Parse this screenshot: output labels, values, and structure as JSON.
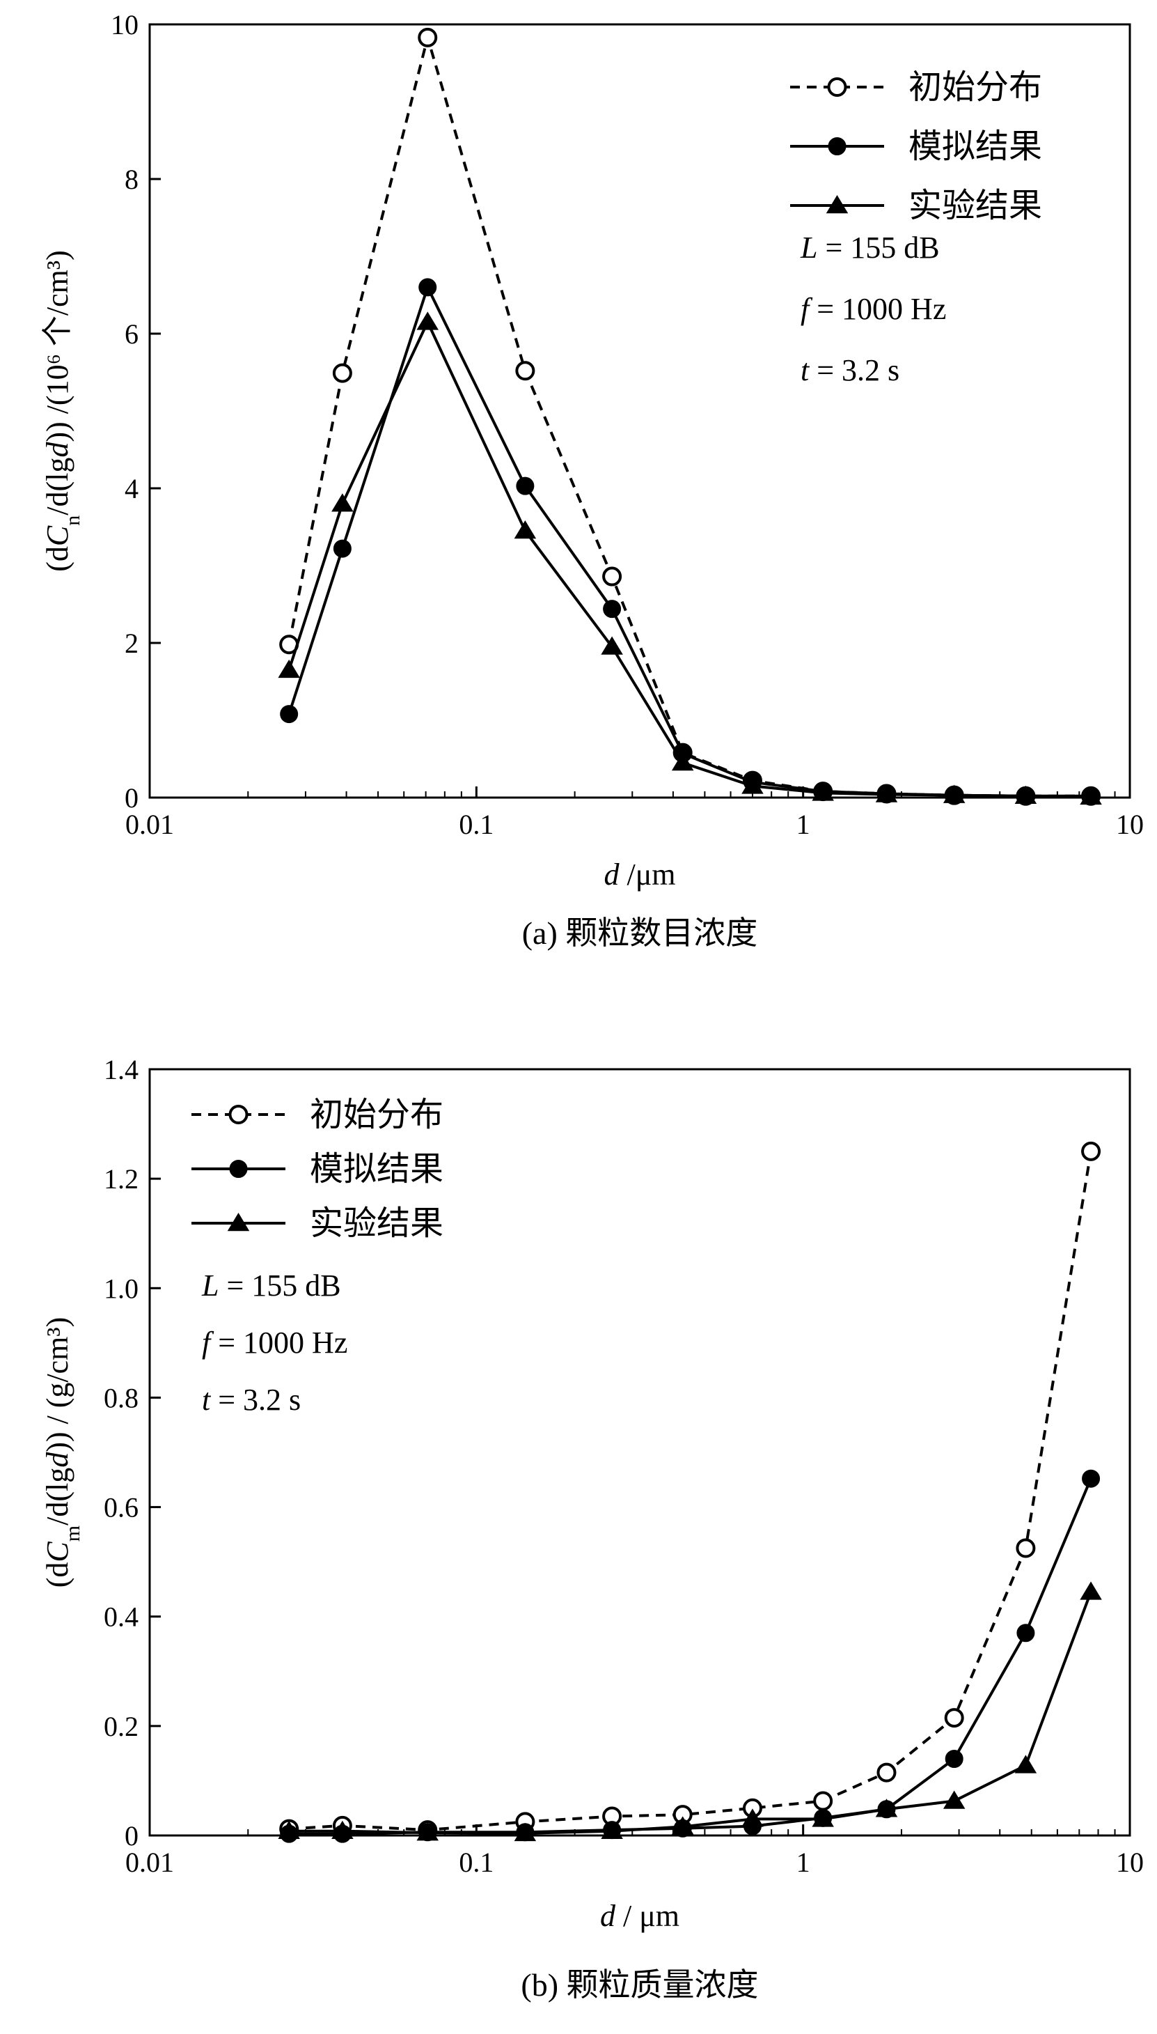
{
  "chart_data": [
    {
      "type": "line",
      "caption": "(a) 颗粒数目浓度",
      "xlabel": "d /μm",
      "ylabel": "(dCn/d(lgd)) /(10⁶ 个/cm³)",
      "x_scale": "log",
      "xlim": [
        0.01,
        10
      ],
      "ylim": [
        0,
        10
      ],
      "x_ticks": [
        "0.01",
        "0.1",
        "1",
        "10"
      ],
      "y_ticks": [
        "0",
        "2",
        "4",
        "6",
        "8",
        "10"
      ],
      "grid": false,
      "legend_position": "top-right",
      "annotations": [
        "L = 155 dB",
        "f = 1000 Hz",
        "t = 3.2 s"
      ],
      "x": [
        0.0267,
        0.0389,
        0.0709,
        0.141,
        0.26,
        0.428,
        0.7,
        1.15,
        1.8,
        2.9,
        4.8,
        7.6
      ],
      "series": [
        {
          "name": "初始分布",
          "style": "dashed",
          "marker": "open-circle",
          "values": [
            1.98,
            5.49,
            9.83,
            5.52,
            2.86,
            0.58,
            0.22,
            0.08,
            0.05,
            0.03,
            0.02,
            0.02
          ]
        },
        {
          "name": "模拟结果",
          "style": "solid",
          "marker": "filled-circle",
          "values": [
            1.08,
            3.22,
            6.6,
            4.03,
            2.44,
            0.57,
            0.2,
            0.08,
            0.05,
            0.03,
            0.02,
            0.02
          ]
        },
        {
          "name": "实验结果",
          "style": "solid",
          "marker": "filled-triangle",
          "values": [
            1.65,
            3.8,
            6.15,
            3.45,
            1.95,
            0.45,
            0.15,
            0.06,
            0.04,
            0.03,
            0.02,
            0.01
          ]
        }
      ]
    },
    {
      "type": "line",
      "caption": "(b) 颗粒质量浓度",
      "xlabel": "d / μm",
      "ylabel": "(dCm/d(lgd)) / (g/cm³)",
      "x_scale": "log",
      "xlim": [
        0.01,
        10
      ],
      "ylim": [
        0,
        1.4
      ],
      "x_ticks": [
        "0.01",
        "0.1",
        "1",
        "10"
      ],
      "y_ticks": [
        "0",
        "0.2",
        "0.4",
        "0.6",
        "0.8",
        "1.0",
        "1.2",
        "1.4"
      ],
      "grid": false,
      "legend_position": "top-left",
      "annotations": [
        "L = 155 dB",
        "f = 1000 Hz",
        "t = 3.2 s"
      ],
      "x": [
        0.0267,
        0.0389,
        0.0709,
        0.141,
        0.26,
        0.428,
        0.7,
        1.15,
        1.8,
        2.9,
        4.8,
        7.6
      ],
      "series": [
        {
          "name": "初始分布",
          "style": "dashed",
          "marker": "open-circle",
          "values": [
            0.012,
            0.018,
            0.01,
            0.025,
            0.035,
            0.038,
            0.05,
            0.063,
            0.115,
            0.215,
            0.525,
            1.25
          ]
        },
        {
          "name": "模拟结果",
          "style": "solid",
          "marker": "filled-circle",
          "values": [
            0.003,
            0.003,
            0.006,
            0.006,
            0.01,
            0.013,
            0.017,
            0.032,
            0.048,
            0.14,
            0.37,
            0.652
          ]
        },
        {
          "name": "实验结果",
          "style": "solid",
          "marker": "filled-triangle",
          "values": [
            0.008,
            0.008,
            0.005,
            0.004,
            0.008,
            0.016,
            0.03,
            0.03,
            0.048,
            0.063,
            0.128,
            0.445
          ]
        }
      ]
    }
  ]
}
